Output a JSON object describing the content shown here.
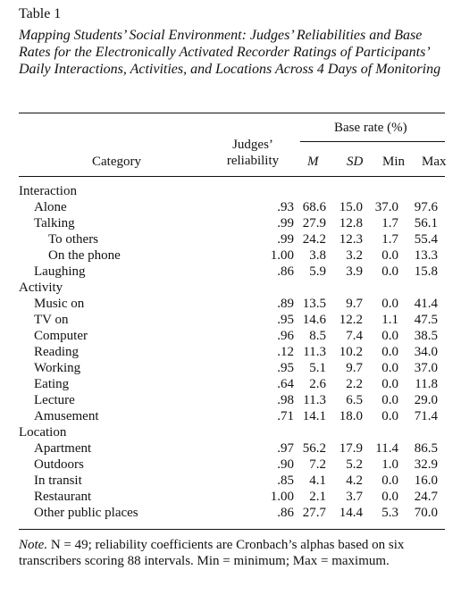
{
  "table_number": "Table 1",
  "caption": "Mapping Students’ Social Environment: Judges’ Reliabilities and Base Rates for the Electronically Activated Recorder Ratings of Participants’ Daily Interactions, Activities, and Locations Across 4 Days of Monitoring",
  "header": {
    "base_rate": "Base rate (%)",
    "category": "Category",
    "judges_line1": "Judges’",
    "judges_line2": "reliability",
    "m": "M",
    "sd": "SD",
    "min": "Min",
    "max": "Max"
  },
  "rows": [
    {
      "label": "Interaction",
      "level": 0
    },
    {
      "label": "Alone",
      "level": 1,
      "rel": ".93",
      "m": "68.6",
      "sd": "15.0",
      "min": "37.0",
      "max": "97.6"
    },
    {
      "label": "Talking",
      "level": 1,
      "rel": ".99",
      "m": "27.9",
      "sd": "12.8",
      "min": "1.7",
      "max": "56.1"
    },
    {
      "label": "To others",
      "level": 2,
      "rel": ".99",
      "m": "24.2",
      "sd": "12.3",
      "min": "1.7",
      "max": "55.4"
    },
    {
      "label": "On the phone",
      "level": 2,
      "rel": "1.00",
      "m": "3.8",
      "sd": "3.2",
      "min": "0.0",
      "max": "13.3"
    },
    {
      "label": "Laughing",
      "level": 1,
      "rel": ".86",
      "m": "5.9",
      "sd": "3.9",
      "min": "0.0",
      "max": "15.8"
    },
    {
      "label": "Activity",
      "level": 0
    },
    {
      "label": "Music on",
      "level": 1,
      "rel": ".89",
      "m": "13.5",
      "sd": "9.7",
      "min": "0.0",
      "max": "41.4"
    },
    {
      "label": "TV on",
      "level": 1,
      "rel": ".95",
      "m": "14.6",
      "sd": "12.2",
      "min": "1.1",
      "max": "47.5"
    },
    {
      "label": "Computer",
      "level": 1,
      "rel": ".96",
      "m": "8.5",
      "sd": "7.4",
      "min": "0.0",
      "max": "38.5"
    },
    {
      "label": "Reading",
      "level": 1,
      "rel": ".12",
      "m": "11.3",
      "sd": "10.2",
      "min": "0.0",
      "max": "34.0"
    },
    {
      "label": "Working",
      "level": 1,
      "rel": ".95",
      "m": "5.1",
      "sd": "9.7",
      "min": "0.0",
      "max": "37.0"
    },
    {
      "label": "Eating",
      "level": 1,
      "rel": ".64",
      "m": "2.6",
      "sd": "2.2",
      "min": "0.0",
      "max": "11.8"
    },
    {
      "label": "Lecture",
      "level": 1,
      "rel": ".98",
      "m": "11.3",
      "sd": "6.5",
      "min": "0.0",
      "max": "29.0"
    },
    {
      "label": "Amusement",
      "level": 1,
      "rel": ".71",
      "m": "14.1",
      "sd": "18.0",
      "min": "0.0",
      "max": "71.4"
    },
    {
      "label": "Location",
      "level": 0
    },
    {
      "label": "Apartment",
      "level": 1,
      "rel": ".97",
      "m": "56.2",
      "sd": "17.9",
      "min": "11.4",
      "max": "86.5"
    },
    {
      "label": "Outdoors",
      "level": 1,
      "rel": ".90",
      "m": "7.2",
      "sd": "5.2",
      "min": "1.0",
      "max": "32.9"
    },
    {
      "label": "In transit",
      "level": 1,
      "rel": ".85",
      "m": "4.1",
      "sd": "4.2",
      "min": "0.0",
      "max": "16.0"
    },
    {
      "label": "Restaurant",
      "level": 1,
      "rel": "1.00",
      "m": "2.1",
      "sd": "3.7",
      "min": "0.0",
      "max": "24.7"
    },
    {
      "label": "Other public places",
      "level": 1,
      "rel": ".86",
      "m": "27.7",
      "sd": "14.4",
      "min": "5.3",
      "max": "70.0"
    }
  ],
  "note": {
    "label": "Note.",
    "text": "N = 49; reliability coefficients are Cronbach’s alphas based on six transcribers scoring 88 intervals. Min = minimum; Max = maximum."
  }
}
